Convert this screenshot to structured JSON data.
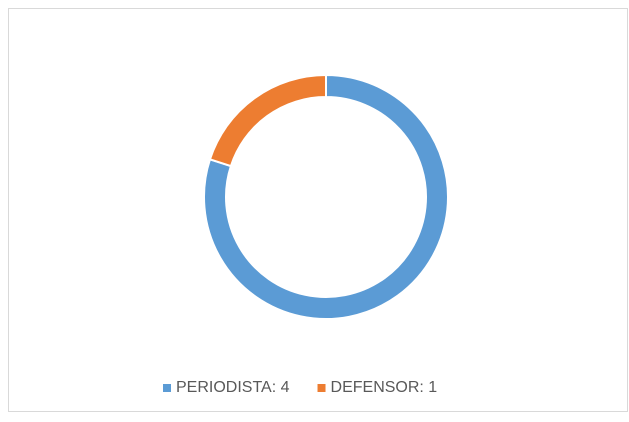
{
  "chart_data": {
    "type": "donut",
    "categories": [
      "PERIODISTA: 4",
      "DEFENSOR: 1"
    ],
    "values": [
      4,
      1
    ],
    "colors": [
      "#5b9bd5",
      "#ed7d31"
    ],
    "legend": "bottom"
  }
}
